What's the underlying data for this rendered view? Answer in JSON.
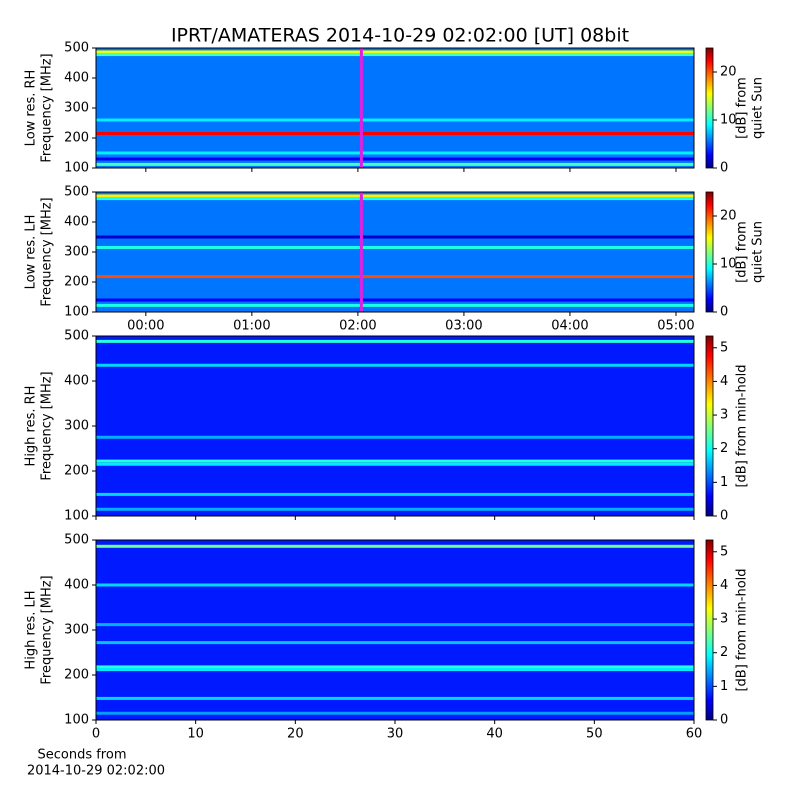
{
  "chart_data": [
    {
      "type": "heatmap",
      "title": "IPRT/AMATERAS 2014-10-29 02:02:00 [UT]   08bit",
      "ylabel": [
        "Low res. RH",
        "Frequency [MHz]"
      ],
      "xlim": [
        -0.47,
        5.17
      ],
      "xticks": [
        0,
        1,
        2,
        3,
        4,
        5
      ],
      "xtick_labels": false,
      "ylim": [
        100,
        500
      ],
      "yticks": [
        100,
        200,
        300,
        400,
        500
      ],
      "marker_x": 2.033,
      "marker_color": "#e020e0",
      "background": 6,
      "bands": [
        {
          "y": 487,
          "value": 15
        },
        {
          "y": 478,
          "value": 11
        },
        {
          "y": 215,
          "value": 22
        },
        {
          "y": 260,
          "value": 9
        },
        {
          "y": 150,
          "value": 9
        },
        {
          "y": 112,
          "value": 11
        },
        {
          "y": 130,
          "value": 3
        }
      ],
      "colorbar": {
        "label": [
          "[dB] from",
          "quiet Sun"
        ],
        "lim": [
          0,
          25
        ],
        "ticks": [
          0,
          10,
          20
        ]
      }
    },
    {
      "type": "heatmap",
      "ylabel": [
        "Low res. LH",
        "Frequency [MHz]"
      ],
      "xlim": [
        -0.47,
        5.17
      ],
      "xticks": [
        {
          "value": 0,
          "label": "00:00"
        },
        {
          "value": 1,
          "label": "01:00"
        },
        {
          "value": 2,
          "label": "02:00"
        },
        {
          "value": 3,
          "label": "03:00"
        },
        {
          "value": 4,
          "label": "04:00"
        },
        {
          "value": 5,
          "label": "05:00"
        }
      ],
      "xtick_labels": true,
      "ylim": [
        100,
        500
      ],
      "yticks": [
        100,
        200,
        300,
        400,
        500
      ],
      "marker_x": 2.033,
      "marker_color": "#e020e0",
      "background": 6,
      "bands": [
        {
          "y": 487,
          "value": 16
        },
        {
          "y": 478,
          "value": 10
        },
        {
          "y": 350,
          "value": 2
        },
        {
          "y": 315,
          "value": 10
        },
        {
          "y": 218,
          "value": 20
        },
        {
          "y": 140,
          "value": 3
        },
        {
          "y": 122,
          "value": 10
        }
      ],
      "colorbar": {
        "label": [
          "[dB] from",
          "quiet Sun"
        ],
        "lim": [
          0,
          25
        ],
        "ticks": [
          0,
          10,
          20
        ]
      }
    },
    {
      "type": "heatmap",
      "ylabel": [
        "High res. RH",
        "Frequency [MHz]"
      ],
      "xlim": [
        0,
        60
      ],
      "xticks": [
        0,
        10,
        20,
        30,
        40,
        50,
        60
      ],
      "xtick_labels": false,
      "ylim": [
        100,
        500
      ],
      "yticks": [
        100,
        200,
        300,
        400,
        500
      ],
      "background": 0.8,
      "bands": [
        {
          "y": 488,
          "value": 2.2
        },
        {
          "y": 435,
          "value": 1.8
        },
        {
          "y": 275,
          "value": 1.6
        },
        {
          "y": 222,
          "value": 2.2
        },
        {
          "y": 215,
          "value": 1.9
        },
        {
          "y": 148,
          "value": 1.8
        },
        {
          "y": 115,
          "value": 1.6
        }
      ],
      "colorbar": {
        "label": [
          "[dB] from min-hold"
        ],
        "lim": [
          0,
          5.35
        ],
        "ticks": [
          0,
          1,
          2,
          3,
          4,
          5
        ]
      }
    },
    {
      "type": "heatmap",
      "ylabel": [
        "High res. LH",
        "Frequency [MHz]"
      ],
      "xlim": [
        0,
        60
      ],
      "xticks": [
        0,
        10,
        20,
        30,
        40,
        50,
        60
      ],
      "xtick_labels": true,
      "xlabel": [
        "Seconds from",
        "2014-10-29 02:02:00"
      ],
      "ylim": [
        100,
        500
      ],
      "yticks": [
        100,
        200,
        300,
        400,
        500
      ],
      "background": 0.8,
      "bands": [
        {
          "y": 486,
          "value": 2.6
        },
        {
          "y": 400,
          "value": 1.8
        },
        {
          "y": 312,
          "value": 1.6
        },
        {
          "y": 272,
          "value": 1.7
        },
        {
          "y": 218,
          "value": 2.2
        },
        {
          "y": 212,
          "value": 1.9
        },
        {
          "y": 148,
          "value": 1.8
        },
        {
          "y": 115,
          "value": 1.5
        }
      ],
      "colorbar": {
        "label": [
          "[dB] from min-hold"
        ],
        "lim": [
          0,
          5.35
        ],
        "ticks": [
          0,
          1,
          2,
          3,
          4,
          5
        ]
      }
    }
  ]
}
